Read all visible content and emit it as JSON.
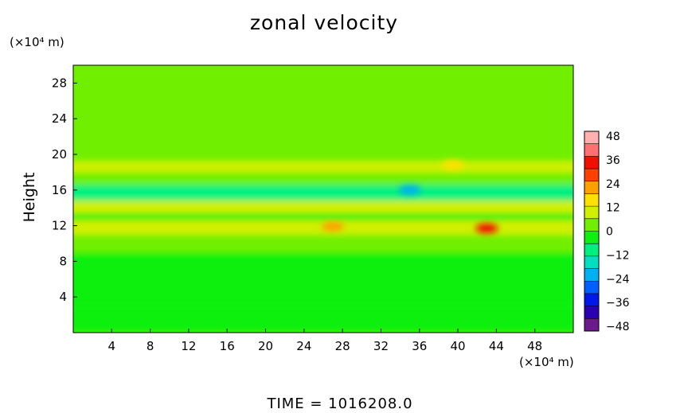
{
  "chart_data": {
    "type": "heatmap",
    "title": "zonal velocity",
    "ylabel": "Height",
    "xlabel": "",
    "x_unit": "(×10⁴ m)",
    "y_unit": "(×10⁴ m)",
    "xlim": [
      0,
      52
    ],
    "ylim": [
      0,
      30
    ],
    "x_ticks": [
      "4",
      "8",
      "12",
      "16",
      "20",
      "24",
      "28",
      "32",
      "36",
      "40",
      "44",
      "48"
    ],
    "y_ticks": [
      "4",
      "8",
      "12",
      "16",
      "20",
      "24",
      "28"
    ],
    "colorbar": {
      "ticks": [
        "48",
        "36",
        "24",
        "12",
        "0",
        "−12",
        "−24",
        "−36",
        "−48"
      ],
      "range": [
        -48,
        48
      ],
      "colors": [
        "#6a1a8a",
        "#2a00b0",
        "#0018e8",
        "#0060ff",
        "#00b0f0",
        "#00e0c0",
        "#00f080",
        "#10f010",
        "#70f000",
        "#d0f000",
        "#ffe000",
        "#ffa000",
        "#ff4000",
        "#f01000",
        "#ff7070",
        "#ffb0b0"
      ]
    },
    "bands": [
      {
        "y": [
          0,
          3
        ],
        "value": -4
      },
      {
        "y": [
          3,
          9
        ],
        "value": -1
      },
      {
        "y": [
          9,
          10.2
        ],
        "value": 4
      },
      {
        "y": [
          10.2,
          11
        ],
        "value": 3
      },
      {
        "y": [
          11,
          12.6
        ],
        "value": 9
      },
      {
        "y": [
          12.6,
          13.4
        ],
        "value": -6
      },
      {
        "y": [
          13.4,
          14.8
        ],
        "value": 8
      },
      {
        "y": [
          14.8,
          16.6
        ],
        "value": -9
      },
      {
        "y": [
          16.6,
          18
        ],
        "value": 2
      },
      {
        "y": [
          18,
          19.2
        ],
        "value": 10
      },
      {
        "y": [
          19.2,
          20
        ],
        "value": 5
      },
      {
        "y": [
          20,
          23
        ],
        "value": 2
      },
      {
        "y": [
          23,
          30
        ],
        "value": 0
      }
    ],
    "features": [
      {
        "x": 43,
        "y": 11.7,
        "value": 34
      },
      {
        "x": 27,
        "y": 11.9,
        "value": 18
      },
      {
        "x": 35,
        "y": 16,
        "value": -22
      },
      {
        "x": 39.5,
        "y": 18.8,
        "value": 14
      }
    ]
  },
  "footer": {
    "time_text": "TIME  =  1016208.0"
  }
}
